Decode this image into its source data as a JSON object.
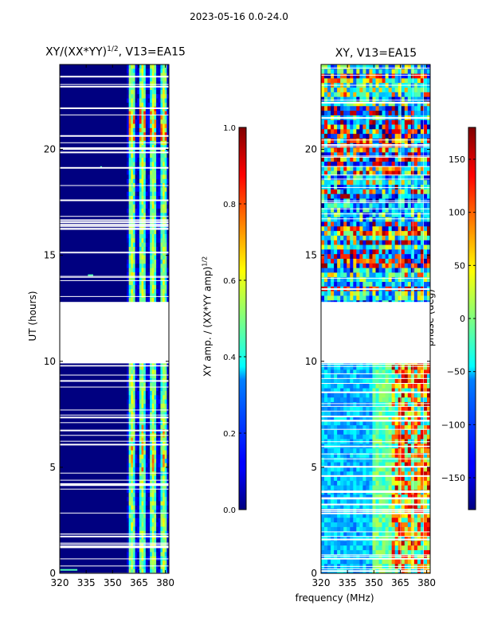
{
  "suptitle": "2023-05-16 0.0-24.0",
  "chart_data": [
    {
      "type": "heatmap",
      "title": "XY/(XX*YY)^1/2, V13=EA15",
      "title_main": "XY/(XX*YY)",
      "title_exp": "1/2",
      "title_rest": ", V13=EA15",
      "xlabel": "",
      "ylabel": "UT (hours)",
      "xlim": [
        320,
        382
      ],
      "ylim": [
        0,
        24
      ],
      "xticks": [
        320,
        335,
        350,
        365,
        380
      ],
      "yticks": [
        0,
        5,
        10,
        15,
        20
      ],
      "quantity": "XY amplitude normalized",
      "data_gap_hours": [
        9.9,
        12.8
      ],
      "active_band_mhz": [
        358,
        382
      ],
      "background_value": 0.0,
      "colorbar": {
        "label": "XY amp. / (XX*YY amp)^1/2",
        "label_main": "XY amp. / (XX*YY amp)",
        "label_exp": "1/2",
        "range": [
          0.0,
          1.0
        ],
        "ticks": [
          "0.0",
          "0.2",
          "0.4",
          "0.6",
          "0.8",
          "1.0"
        ],
        "colormap": "jet"
      }
    },
    {
      "type": "heatmap",
      "title": "XY, V13=EA15",
      "xlabel": "frequency (MHz)",
      "ylabel": "",
      "xlim": [
        320,
        382
      ],
      "ylim": [
        0,
        24
      ],
      "xticks": [
        320,
        335,
        350,
        365,
        380
      ],
      "yticks": [
        0,
        5,
        10,
        15,
        20
      ],
      "quantity": "XY phase",
      "data_gap_hours": [
        9.9,
        12.8
      ],
      "colorbar": {
        "label": "phase (deg)",
        "range": [
          -180,
          180
        ],
        "ticks": [
          "−150",
          "−100",
          "−50",
          "0",
          "50",
          "100",
          "150"
        ],
        "colormap": "jet"
      }
    }
  ]
}
